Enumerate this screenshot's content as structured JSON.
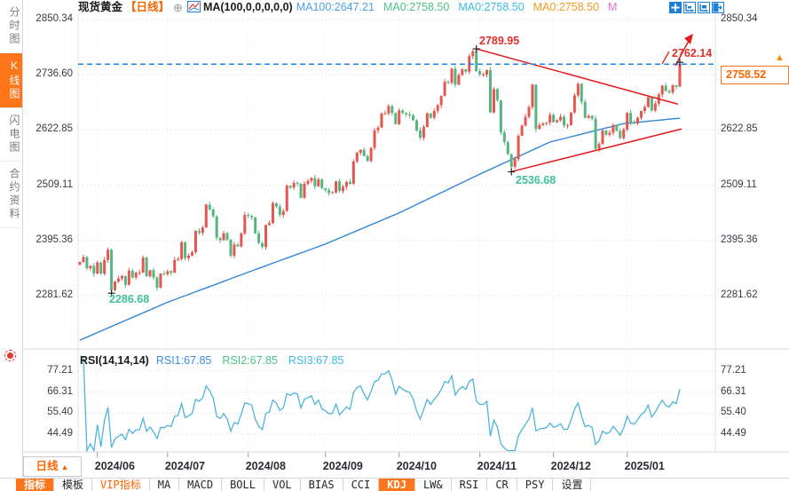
{
  "sidebar": {
    "tabs": [
      {
        "label": "分时图",
        "name": "timeshare-chart",
        "active": false
      },
      {
        "label": "K线图",
        "name": "kline-chart",
        "active": true
      },
      {
        "label": "闪电图",
        "name": "lightning-chart",
        "active": false
      },
      {
        "label": "合约资料",
        "name": "contract-info",
        "active": false
      }
    ]
  },
  "header": {
    "symbol": "现货黄金",
    "period_tag": "【日线】",
    "add_icon": "⊕",
    "ma_formula": "MA(100,0,0,0,0,0)",
    "ma_values": [
      {
        "label": "MA100:2647.21",
        "color": "#4aa3e8"
      },
      {
        "label": "MA0:2758.50",
        "color": "#4cc38a"
      },
      {
        "label": "MA0:2758.50",
        "color": "#38bde8"
      },
      {
        "label": "MA0:2758.50",
        "color": "#f59a23"
      },
      {
        "label": "M",
        "color": "#f06ec2"
      }
    ]
  },
  "top_icons": [
    {
      "name": "crosshair-move-icon"
    },
    {
      "name": "axis-zoom-in-icon"
    },
    {
      "name": "axis-zoom-out-icon"
    },
    {
      "name": "pan-right-icon"
    }
  ],
  "current_price": {
    "value": "2758.52",
    "arrow": "▲"
  },
  "timeframe_button": {
    "label": "日线",
    "arrow": "▲"
  },
  "bottom_toolbar": {
    "items": [
      {
        "label": "指标",
        "name": "indicator",
        "active": true
      },
      {
        "label": "模板",
        "name": "template"
      },
      {
        "label": "VIP指标",
        "name": "vip-indicator",
        "vip": true
      },
      {
        "label": "MA",
        "name": "ma"
      },
      {
        "label": "MACD",
        "name": "macd"
      },
      {
        "label": "BOLL",
        "name": "boll"
      },
      {
        "label": "VOL",
        "name": "vol"
      },
      {
        "label": "BIAS",
        "name": "bias"
      },
      {
        "label": "CCI",
        "name": "cci"
      },
      {
        "label": "KDJ",
        "name": "kdj",
        "active": true
      },
      {
        "label": "LW&",
        "name": "lw"
      },
      {
        "label": "RSI",
        "name": "rsi"
      },
      {
        "label": "CR",
        "name": "cr"
      },
      {
        "label": "PSY",
        "name": "psy"
      },
      {
        "label": "设置",
        "name": "settings"
      }
    ]
  },
  "chart_data": {
    "type": "candlestick",
    "symbol": "现货黄金",
    "period": "日线",
    "up_color": "#e4564e",
    "down_color": "#57b582",
    "grid": true,
    "y_axis": {
      "tick_values": [
        2850.34,
        2736.6,
        2622.85,
        2509.11,
        2395.36,
        2281.62
      ],
      "tick_labels": [
        "2850.34",
        "2736.60",
        "2622.85",
        "2509.11",
        "2395.36",
        "2281.62"
      ]
    },
    "x_axis": {
      "labels": [
        "2024/06",
        "2024/07",
        "2024/08",
        "2024/09",
        "2024/10",
        "2024/11",
        "2024/12",
        "2025/01"
      ],
      "label_candle_indices": [
        5,
        25,
        48,
        70,
        91,
        114,
        135,
        156
      ]
    },
    "first_open": 2345,
    "closes": [
      2351,
      2361,
      2338,
      2343,
      2327,
      2350,
      2327,
      2355,
      2376,
      2293,
      2311,
      2317,
      2322,
      2304,
      2333,
      2319,
      2329,
      2329,
      2360,
      2322,
      2334,
      2319,
      2298,
      2327,
      2326,
      2332,
      2329,
      2355,
      2357,
      2392,
      2359,
      2364,
      2371,
      2415,
      2411,
      2422,
      2469,
      2459,
      2445,
      2401,
      2396,
      2410,
      2397,
      2364,
      2387,
      2383,
      2410,
      2448,
      2446,
      2443,
      2410,
      2390,
      2382,
      2427,
      2431,
      2472,
      2465,
      2448,
      2456,
      2508,
      2504,
      2514,
      2512,
      2483,
      2512,
      2518,
      2524,
      2507,
      2521,
      2503,
      2499,
      2493,
      2494,
      2517,
      2497,
      2506,
      2516,
      2512,
      2558,
      2576,
      2582,
      2569,
      2559,
      2586,
      2622,
      2628,
      2657,
      2657,
      2672,
      2658,
      2635,
      2663,
      2658,
      2655,
      2653,
      2643,
      2622,
      2607,
      2629,
      2657,
      2648,
      2662,
      2674,
      2693,
      2722,
      2720,
      2749,
      2716,
      2736,
      2748,
      2743,
      2775,
      2785,
      2744,
      2737,
      2737,
      2746,
      2659,
      2707,
      2684,
      2618,
      2598,
      2573,
      2547,
      2563,
      2611,
      2632,
      2650,
      2670,
      2716,
      2625,
      2633,
      2636,
      2638,
      2654,
      2639,
      2643,
      2650,
      2632,
      2633,
      2659,
      2694,
      2718,
      2681,
      2648,
      2652,
      2646,
      2584,
      2594,
      2622,
      2613,
      2617,
      2633,
      2621,
      2606,
      2624,
      2658,
      2639,
      2636,
      2648,
      2662,
      2670,
      2690,
      2663,
      2677,
      2696,
      2714,
      2703,
      2700,
      2715,
      2712,
      2758.52
    ],
    "wick_overrides": {
      "9": {
        "low": 2286.68
      },
      "113": {
        "high": 2789.95
      },
      "123": {
        "low": 2536.68
      },
      "171": {
        "high": 2762.14
      }
    },
    "ma100": {
      "name": "MA100",
      "last_value": 2647.21,
      "color": "#3386d8",
      "anchors": [
        [
          0,
          2190
        ],
        [
          25,
          2268
        ],
        [
          48,
          2330
        ],
        [
          70,
          2388
        ],
        [
          91,
          2452
        ],
        [
          114,
          2532
        ],
        [
          134,
          2598
        ],
        [
          155,
          2636
        ],
        [
          171,
          2647.21
        ]
      ]
    },
    "last_price": 2758.52,
    "last_price_line_color": "#1d86ee",
    "annotations": {
      "high": "2789.95",
      "breakout_high": "2762.14",
      "low_nov": "2536.68",
      "low_jun": "2286.68"
    },
    "marked_points": [
      {
        "index": 113,
        "price": 2789.95
      },
      {
        "index": 9,
        "price": 2286.68
      },
      {
        "index": 123,
        "price": 2536.68
      },
      {
        "index": 171,
        "price": 2762.14
      }
    ],
    "trendlines": [
      {
        "from": [
          113,
          2790
        ],
        "to": [
          170.5,
          2676
        ],
        "color": "#e01f1f"
      },
      {
        "from": [
          123,
          2537
        ],
        "to": [
          171.5,
          2625
        ],
        "color": "#e01f1f"
      }
    ],
    "rsi": {
      "title": "RSI(14,14,14)",
      "period": 14,
      "series": [
        {
          "label": "RSI1:67.85",
          "color": "#3d8fe3"
        },
        {
          "label": "RSI2:67.85",
          "color": "#4cc38a"
        },
        {
          "label": "RSI3:67.85",
          "color": "#38bde8"
        }
      ],
      "axis_tick_values": [
        77.21,
        66.31,
        55.4,
        44.49
      ],
      "axis_tick_labels": [
        "77.21",
        "66.31",
        "55.40",
        "44.49"
      ],
      "line_color": "#4fb4da"
    }
  }
}
